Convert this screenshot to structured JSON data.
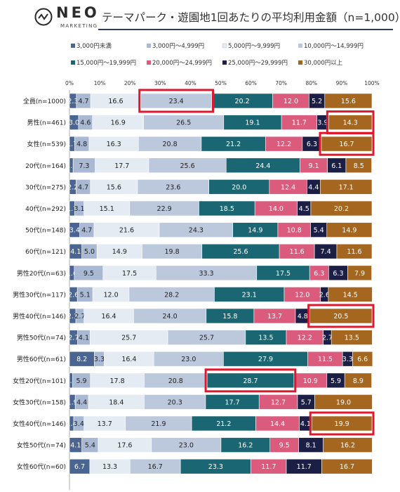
{
  "brand": {
    "name": "NEO",
    "tagline": "MARKETING",
    "icon": "neo-logo-icon"
  },
  "chart_data": {
    "type": "bar",
    "stacked": true,
    "orientation": "horizontal",
    "title": "テーマパーク・遊園地1回あたりの平均利用金額（n=1,000）",
    "x_ticks": [
      "0%",
      "10%",
      "20%",
      "30%",
      "40%",
      "50%",
      "60%",
      "70%",
      "80%",
      "90%",
      "100%"
    ],
    "legend_position": "top",
    "categories": [
      "全員(n=1000)",
      "男性(n=461)",
      "女性(n=539)",
      "20代(n=164)",
      "30代(n=275)",
      "40代(n=292)",
      "50代(n=148)",
      "60代(n=121)",
      "男性20代(n=63)",
      "男性30代(n=117)",
      "男性40代(n=146)",
      "男性50代(n=74)",
      "男性60代(n=61)",
      "女性20代(n=101)",
      "女性30代(n=158)",
      "女性40代(n=146)",
      "女性50代(n=74)",
      "女性60代(n=60)"
    ],
    "series": [
      {
        "name": "3,000円未満",
        "color": "#4a6591",
        "label_color": "#ffffff",
        "values": [
          "2.3",
          "3.0",
          "1.7",
          "1.2",
          "2.2",
          "1.7",
          "3.4",
          "4.1",
          "1.6",
          "2.6",
          "2.1",
          "2.7",
          "8.2",
          "1.0",
          "1.9",
          "1.4",
          "4.1",
          "6.7"
        ]
      },
      {
        "name": "3,000円〜4,999円",
        "color": "#a9b9d3",
        "label_color": "#222222",
        "values": [
          "4.7",
          "4.6",
          "4.8",
          "7.3",
          "4.7",
          "3.1",
          "4.7",
          "5.0",
          "9.5",
          "5.1",
          "2.7",
          "4.1",
          "3.3",
          "5.9",
          "4.4",
          "3.4",
          "5.4",
          "0"
        ]
      },
      {
        "name": "5,000円〜9,999円",
        "color": "#e4ebf3",
        "label_color": "#222222",
        "values": [
          "16.6",
          "16.9",
          "16.3",
          "17.7",
          "15.6",
          "15.1",
          "21.6",
          "14.9",
          "17.5",
          "12.0",
          "16.4",
          "25.7",
          "16.4",
          "17.8",
          "18.4",
          "13.7",
          "17.6",
          "13.3"
        ]
      },
      {
        "name": "10,000円〜14,999円",
        "color": "#bcc8dc",
        "label_color": "#222222",
        "values": [
          "23.4",
          "26.5",
          "20.8",
          "25.6",
          "23.6",
          "22.9",
          "24.3",
          "19.8",
          "33.3",
          "28.2",
          "24.0",
          "25.7",
          "23.0",
          "20.8",
          "20.3",
          "21.9",
          "23.0",
          "16.7"
        ]
      },
      {
        "name": "15,000円〜19,999円",
        "color": "#1b6673",
        "label_color": "#ffffff",
        "values": [
          "20.2",
          "19.1",
          "21.2",
          "24.4",
          "20.0",
          "18.5",
          "14.9",
          "25.6",
          "17.5",
          "23.1",
          "15.8",
          "13.5",
          "27.9",
          "28.7",
          "17.7",
          "21.2",
          "16.2",
          "23.3"
        ]
      },
      {
        "name": "20,000円〜24,999円",
        "color": "#db5b7c",
        "label_color": "#ffffff",
        "values": [
          "12.0",
          "11.7",
          "12.2",
          "9.1",
          "12.4",
          "14.0",
          "10.8",
          "11.6",
          "6.3",
          "12.0",
          "13.7",
          "12.2",
          "11.5",
          "10.9",
          "12.7",
          "14.4",
          "9.5",
          "11.7"
        ]
      },
      {
        "name": "25,000円〜29,999円",
        "color": "#1c1f45",
        "label_color": "#ffffff",
        "values": [
          "5.2",
          "3.9",
          "6.3",
          "6.1",
          "4.4",
          "4.5",
          "5.4",
          "7.4",
          "6.3",
          "2.6",
          "4.8",
          "2.7",
          "3.3",
          "5.9",
          "5.7",
          "4.1",
          "8.1",
          "11.7"
        ]
      },
      {
        "name": "30,000円以上",
        "color": "#a5661f",
        "label_color": "#ffffff",
        "values": [
          "15.6",
          "14.3",
          "16.7",
          "8.5",
          "17.1",
          "20.2",
          "14.9",
          "11.6",
          "7.9",
          "14.5",
          "20.5",
          "13.5",
          "6.6",
          "8.9",
          "19.0",
          "19.9",
          "16.2",
          "16.7"
        ]
      }
    ],
    "highlights": [
      {
        "row": 0,
        "series": 3
      },
      {
        "row": 1,
        "series": 7
      },
      {
        "row": 2,
        "series": 7
      },
      {
        "row": 10,
        "series": 7
      },
      {
        "row": 13,
        "series": 4
      },
      {
        "row": 15,
        "series": 7
      }
    ],
    "highlight_color": "#e0182d"
  }
}
